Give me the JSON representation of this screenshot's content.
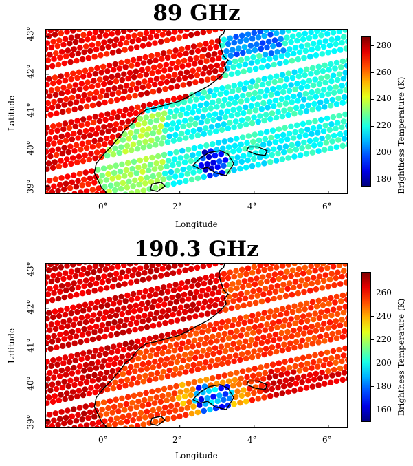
{
  "panels": [
    {
      "title": "89 GHz",
      "xlabel": "Longitude",
      "ylabel": "Latitude",
      "x_ticks": [
        "0°",
        "2°",
        "4°",
        "6°"
      ],
      "y_ticks": [
        "39°",
        "40°",
        "41°",
        "42°",
        "43°"
      ],
      "colorbar": {
        "label": "Brighthess Temperature (K)",
        "ticks": [
          "180",
          "200",
          "220",
          "240",
          "260",
          "280"
        ],
        "range": [
          175,
          287
        ]
      }
    },
    {
      "title": "190.3 GHz",
      "xlabel": "Longitude",
      "ylabel": "Latitude",
      "x_ticks": [
        "0°",
        "2°",
        "4°",
        "6°"
      ],
      "y_ticks": [
        "39°",
        "40°",
        "41°",
        "42°",
        "43°"
      ],
      "colorbar": {
        "label": "Brighthess Temperature (K)",
        "ticks": [
          "160",
          "180",
          "200",
          "220",
          "240",
          "260"
        ],
        "range": [
          150,
          278
        ]
      }
    }
  ],
  "map_extent": {
    "lon": [
      -1.6,
      6.5
    ],
    "lat": [
      38.8,
      43.2
    ]
  },
  "colormap": "jet"
}
